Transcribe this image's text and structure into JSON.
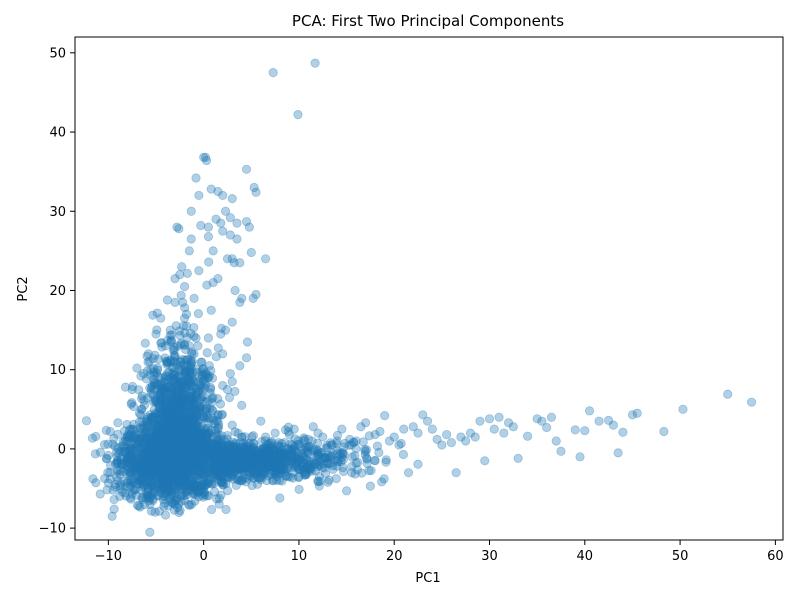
{
  "chart_data": {
    "type": "scatter",
    "title": "PCA: First Two Principal Components",
    "xlabel": "PC1",
    "ylabel": "PC2",
    "xlim": [
      -13.5,
      60.8
    ],
    "ylim": [
      -11.5,
      52.0
    ],
    "xticks": [
      -10,
      0,
      10,
      20,
      30,
      40,
      50,
      60
    ],
    "yticks": [
      -10,
      0,
      10,
      20,
      30,
      40,
      50
    ],
    "grid": false,
    "legend": "none",
    "marker_color": "#1f77b4",
    "marker_alpha": 0.35,
    "series": [
      {
        "x": [
          -10.0,
          -9.8,
          -9.6,
          -9.5,
          -9.3,
          -9.0,
          -8.8,
          -8.5,
          -8.2,
          -8.0,
          -7.8,
          -7.5,
          -7.3,
          -7.0,
          -6.8,
          -6.5,
          -6.3,
          -6.0,
          -5.8,
          -5.5,
          -5.3,
          -5.0,
          -4.8,
          -4.5,
          -4.3,
          -4.0,
          -3.8,
          -3.5,
          -3.3,
          -3.0,
          -2.8,
          -2.5,
          -2.3,
          -2.0,
          -1.8,
          -1.5,
          -1.3,
          -1.0,
          -0.8,
          -0.5,
          -0.3,
          0.0,
          0.3,
          0.5,
          0.8,
          1.0,
          1.3,
          1.5,
          1.8,
          2.0,
          2.3,
          2.5,
          2.8,
          3.0,
          3.3,
          3.5,
          3.8,
          4.0,
          4.5,
          5.0,
          5.5,
          6.0,
          6.5,
          7.0,
          7.5,
          8.0,
          8.5,
          9.0,
          9.5,
          10.0,
          10.5,
          11.0,
          11.5,
          12.0,
          12.5,
          13.0,
          13.5,
          14.0,
          14.5,
          15.0,
          15.5,
          16.0,
          16.5,
          17.0,
          17.5,
          18.0,
          18.5,
          19.0,
          19.5,
          20.0,
          20.5,
          21.0,
          21.5,
          22.0,
          22.5,
          23.0,
          23.5,
          24.0,
          24.5,
          25.0,
          25.5,
          26.0,
          26.5,
          27.0,
          27.5,
          28.0,
          28.5,
          29.0,
          29.5,
          30.0,
          30.5,
          31.0,
          31.5,
          32.0,
          32.5,
          33.0,
          34.0,
          35.0,
          35.5,
          36.0,
          36.5,
          37.0,
          37.5,
          39.0,
          39.5,
          40.0,
          40.5,
          41.5,
          42.5,
          43.0,
          43.5,
          44.0,
          45.0,
          45.5,
          48.3,
          50.3,
          55.0,
          57.5,
          7.3,
          11.7,
          9.9,
          0.2,
          0.5,
          4.5,
          5.3,
          5.5,
          -1.3,
          1.0,
          2.0,
          2.8,
          3.2,
          3.5,
          4.8,
          6.5,
          -3.0,
          -2.6,
          -2.2,
          -1.5,
          -0.5,
          0.5,
          1.5,
          2.3,
          3.0,
          3.8,
          4.6,
          5.2,
          -3.5,
          -2.0,
          -0.8,
          0.8,
          2.0,
          3.0,
          4.5,
          -4.5,
          -3.2,
          -1.8,
          -0.6,
          0.6,
          1.8,
          2.8,
          3.8,
          -5.5,
          -4.0,
          -2.5,
          -1.0,
          0.5,
          2.0,
          3.0,
          -6.5,
          -5.0,
          -3.5,
          -2.0,
          -0.5,
          1.0,
          2.5,
          4.0,
          -7.5,
          -6.0,
          -4.5,
          -3.0,
          -1.5,
          0.0,
          1.5,
          3.0,
          -8.0,
          -6.5,
          -5.0,
          -3.5,
          -2.0,
          -0.5,
          1.0,
          2.5,
          4.0,
          -9.0,
          -7.5,
          -6.0,
          -4.5,
          -3.0,
          -1.5,
          0.0,
          1.5,
          3.0,
          -6.0,
          -4.0,
          -2.0,
          0.0,
          2.0,
          4.0,
          6.0,
          8.0,
          10.0,
          12.0,
          14.0,
          16.0,
          18.0
        ],
        "y": [
          -4.3,
          -3.8,
          -8.5,
          -5.2,
          0.3,
          3.3,
          -6.0,
          -2.0,
          7.8,
          1.0,
          -3.0,
          7.5,
          2.5,
          10.2,
          -7.2,
          5.0,
          9.5,
          -2.5,
          12.0,
          4.0,
          -6.5,
          14.5,
          8.0,
          16.5,
          -5.0,
          13.0,
          18.8,
          15.0,
          -6.8,
          18.5,
          28.0,
          22.0,
          23.0,
          20.5,
          17.0,
          25.0,
          26.5,
          19.0,
          34.2,
          32.0,
          28.2,
          36.8,
          36.4,
          26.8,
          32.8,
          25.0,
          29.0,
          32.5,
          28.5,
          32.0,
          30.0,
          24.0,
          29.2,
          31.6,
          20.0,
          28.5,
          23.5,
          19.0,
          35.3,
          24.8,
          19.5,
          3.5,
          1.5,
          -1.0,
          2.0,
          -6.2,
          0.8,
          1.8,
          2.5,
          -1.5,
          1.0,
          1.2,
          2.8,
          2.0,
          1.5,
          -1.8,
          0.5,
          1.0,
          2.5,
          -5.3,
          0.5,
          1.0,
          2.8,
          3.3,
          -4.7,
          1.8,
          2.2,
          4.2,
          1.0,
          1.5,
          0.5,
          2.5,
          -3.0,
          2.8,
          2.0,
          4.3,
          3.5,
          2.5,
          1.2,
          0.5,
          1.8,
          0.8,
          -3.0,
          1.5,
          1.0,
          2.0,
          1.5,
          3.5,
          -1.5,
          3.8,
          2.5,
          4.0,
          2.0,
          3.3,
          2.8,
          -1.2,
          1.6,
          3.8,
          3.5,
          2.7,
          4.0,
          1.0,
          -0.3,
          2.4,
          -1.0,
          2.3,
          4.8,
          3.5,
          3.6,
          3.0,
          -0.5,
          2.1,
          4.3,
          4.5,
          2.2,
          5.0,
          6.9,
          5.9,
          47.5,
          48.7,
          42.2,
          36.8,
          28.0,
          28.7,
          33.0,
          32.4,
          30.0,
          21.0,
          27.5,
          27.0,
          23.5,
          26.5,
          28.0,
          24.0,
          21.5,
          27.8,
          18.5,
          13.0,
          22.5,
          14.0,
          21.5,
          15.0,
          24.0,
          18.5,
          13.5,
          19.0,
          11.0,
          16.5,
          14.0,
          17.5,
          12.0,
          16.0,
          11.5,
          9.0,
          12.5,
          15.5,
          13.0,
          10.5,
          14.5,
          9.5,
          10.5,
          7.5,
          8.5,
          11.0,
          12.0,
          9.0,
          8.0,
          8.5,
          5.0,
          6.0,
          7.0,
          9.5,
          8.5,
          6.5,
          7.5,
          5.5,
          2.5,
          3.5,
          4.5,
          6.0,
          5.5,
          4.0,
          3.5,
          3.0,
          -1.0,
          0.5,
          1.0,
          2.0,
          2.5,
          1.5,
          0.5,
          0.0,
          1.5,
          -4.0,
          -3.0,
          -2.5,
          -2.0,
          -1.5,
          -2.0,
          -2.5,
          -3.0,
          -2.0,
          -5.5,
          -6.0,
          -6.5,
          -5.5,
          -4.5,
          -4.0,
          -3.5,
          -3.0,
          -2.5,
          -2.0,
          -2.2,
          -1.8,
          -1.5
        ]
      }
    ]
  }
}
